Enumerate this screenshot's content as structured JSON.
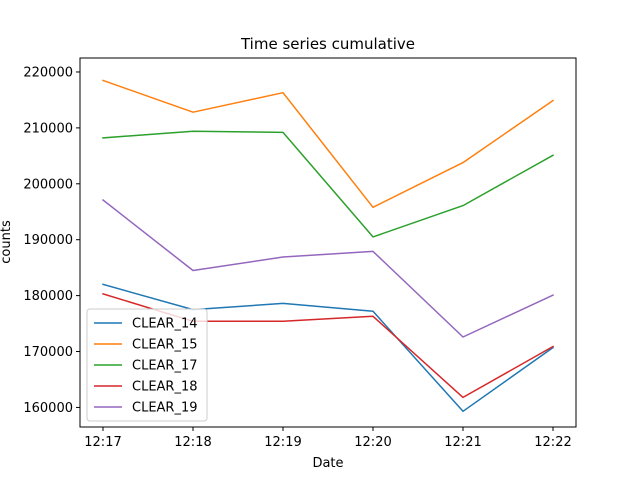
{
  "chart_data": {
    "type": "line",
    "title": "Time series cumulative",
    "xlabel": "Date",
    "ylabel": "counts",
    "x": [
      "12:17",
      "12:18",
      "12:19",
      "12:20",
      "12:21",
      "12:22"
    ],
    "ylim": [
      156500,
      222500
    ],
    "yticks": [
      160000,
      170000,
      180000,
      190000,
      200000,
      210000,
      220000
    ],
    "ytick_labels": [
      "160000",
      "170000",
      "180000",
      "190000",
      "200000",
      "210000",
      "220000"
    ],
    "grid": false,
    "legend_position": "lower-left",
    "series": [
      {
        "name": "CLEAR_14",
        "color": "#1f77b4",
        "values": [
          182000,
          177500,
          178600,
          177200,
          159300,
          170700
        ]
      },
      {
        "name": "CLEAR_15",
        "color": "#ff7f0e",
        "values": [
          218500,
          212800,
          216300,
          195800,
          203800,
          214900
        ]
      },
      {
        "name": "CLEAR_17",
        "color": "#2ca02c",
        "values": [
          208200,
          209400,
          209200,
          190500,
          196100,
          205100
        ]
      },
      {
        "name": "CLEAR_18",
        "color": "#d62728",
        "values": [
          180300,
          175400,
          175400,
          176300,
          161800,
          170900
        ]
      },
      {
        "name": "CLEAR_19",
        "color": "#9467bd",
        "values": [
          197100,
          184500,
          186900,
          187900,
          172600,
          180100
        ]
      }
    ]
  }
}
